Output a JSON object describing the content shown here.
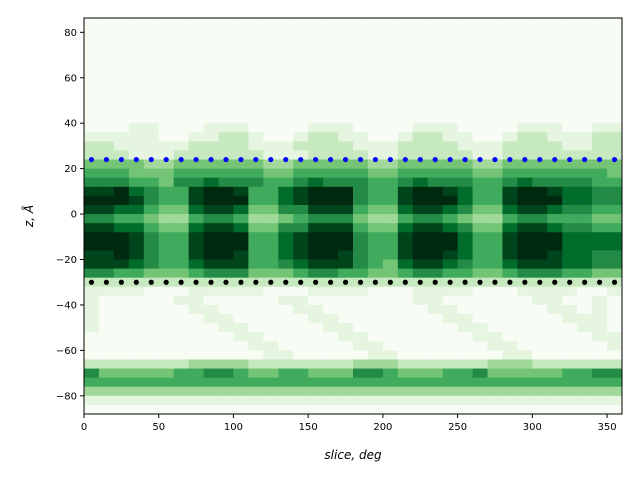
{
  "chart_data": {
    "type": "heatmap",
    "title": "",
    "xlabel": "slice, deg",
    "ylabel": "z, Å",
    "xlim": [
      0,
      360
    ],
    "ylim": [
      -88,
      86.3
    ],
    "xticks": [
      0,
      50,
      100,
      150,
      200,
      250,
      300,
      350
    ],
    "yticks": [
      -80,
      -60,
      -40,
      -20,
      0,
      20,
      40,
      60,
      80
    ],
    "grid": false,
    "colormap": [
      "#f7fcf5",
      "#e5f5e0",
      "#c7e9c0",
      "#a1d99b",
      "#74c476",
      "#41ab5d",
      "#238b45",
      "#006d2c",
      "#00441b",
      "#002a10"
    ],
    "x_bin_deg": 10,
    "z_bin": 4,
    "z_top": 88,
    "intensity_scale": [
      0,
      9
    ],
    "matrix_rows_top_to_bottom": [
      "000000000000000000000000000000000000",
      "000000000000000000000000000000000000",
      "000000000000000000000000000000000000",
      "000000000000000000000000000000000000",
      "000000000000000000000000000000000000",
      "000000000000000000000000000000000000",
      "000000000000000000000000000000000000",
      "000000000000000000000000000000000000",
      "000000000000000000000000000000000000",
      "000000000000000000000000000000000000",
      "000000000000000000000000000000000000",
      "000000000000000000000000000000000000",
      "000110001110000111000011100001110011",
      "111110011221001221100122110012211122",
      "221111122221112222111222211122221122",
      "222111222222111222211222221122222222",
      "444433444444334444433444443344444444",
      "555444555555445555544555554455555554",
      "666554667666556766655676665567666655",
      "889765589985578999655899875589987766",
      "999865589995578999655899975589997766",
      "887754478874466888544788764478876655",
      "665543356653345666433566543356655544",
      "887754478874466888544788764478876655",
      "999865589995578999655899975589997777",
      "999865589995578999655899975589997777",
      "889865589985578998655899875589987766",
      "888765578885567888654788765578887766",
      "665544456664445665544566554456665544",
      "222222222222222222222222222222222222",
      "111100011111000111100011110001111001",
      "100000110000011000000011000000110010",
      "100000011000001100000001100000011010",
      "100000001100000110000000110000001110",
      "100000000110000011000000011000000110",
      "000000000011000001100000001100000011",
      "000000000001100000110000000110000001",
      "000000000000110000011000000011000000",
      "222222233332222222333222222333222222",
      "644444556654455444665444556444445566",
      "555555555555555555555555555555555555",
      "333333333333333333333333333333333333",
      "111111111111111111111111111111111111",
      "000000000000000000000000000000000000"
    ],
    "overlay_series": [
      {
        "style": "dots",
        "color": "#0000ff",
        "z": 24,
        "x": [
          5,
          15,
          25,
          35,
          45,
          55,
          65,
          75,
          85,
          95,
          105,
          115,
          125,
          135,
          145,
          155,
          165,
          175,
          185,
          195,
          205,
          215,
          225,
          235,
          245,
          255,
          265,
          275,
          285,
          295,
          305,
          315,
          325,
          335,
          345,
          355
        ]
      },
      {
        "style": "dots",
        "color": "#000000",
        "z": -30,
        "x": [
          5,
          15,
          25,
          35,
          45,
          55,
          65,
          75,
          85,
          95,
          105,
          115,
          125,
          135,
          145,
          155,
          165,
          175,
          185,
          195,
          205,
          215,
          225,
          235,
          245,
          255,
          265,
          275,
          285,
          295,
          305,
          315,
          325,
          335,
          345,
          355
        ]
      }
    ]
  }
}
